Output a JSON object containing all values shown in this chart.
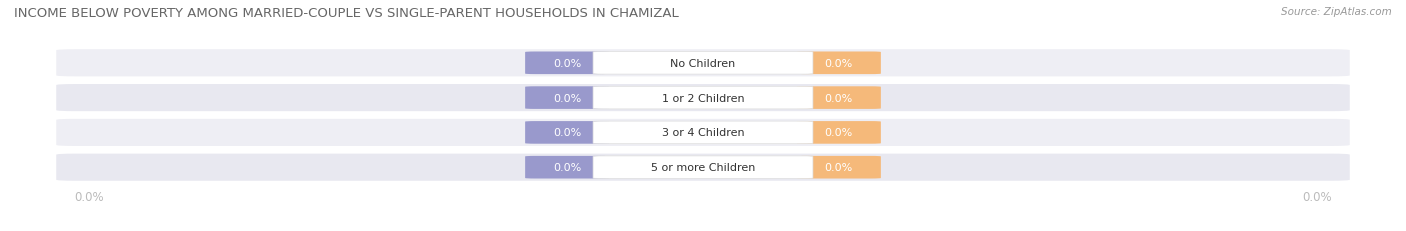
{
  "title": "INCOME BELOW POVERTY AMONG MARRIED-COUPLE VS SINGLE-PARENT HOUSEHOLDS IN CHAMIZAL",
  "source": "Source: ZipAtlas.com",
  "categories": [
    "No Children",
    "1 or 2 Children",
    "3 or 4 Children",
    "5 or more Children"
  ],
  "married_values": [
    0.0,
    0.0,
    0.0,
    0.0
  ],
  "single_values": [
    0.0,
    0.0,
    0.0,
    0.0
  ],
  "married_color": "#9999cc",
  "single_color": "#f5b97a",
  "title_fontsize": 9.5,
  "label_fontsize": 8.0,
  "tick_fontsize": 8.5,
  "bar_height": 0.62,
  "row_bg_color": "#f0f0f5",
  "center_label_bg": "#ffffff",
  "value_text_color": "#ffffff",
  "axis_label_color": "#bbbbbb",
  "fig_bg": "#ffffff",
  "row_bg_even": "#eeeeF4",
  "row_bg_odd": "#e8e8f0"
}
